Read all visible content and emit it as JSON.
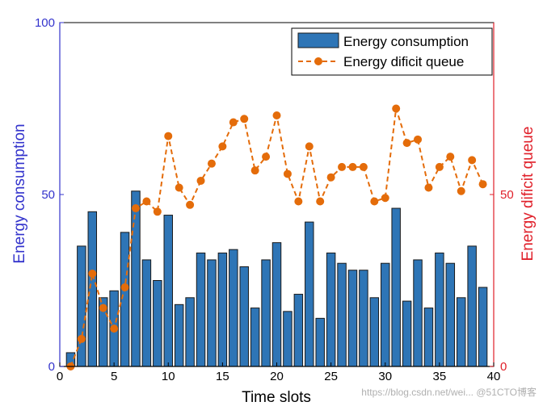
{
  "colors": {
    "bar": "#2e75b6",
    "bar_edge": "#1a1a1a",
    "line": "#e46c0a",
    "left_axis": "#3333cc",
    "right_axis": "#e0202a",
    "x_axis": "#000000"
  },
  "chart_data": {
    "type": "bar",
    "xlabel": "Time slots",
    "ylabel_left": "Energy consumption",
    "ylabel_right": "Energy dificit queue",
    "xlim": [
      0,
      40
    ],
    "ylim_left": [
      0,
      100
    ],
    "ylim_right": [
      0,
      100
    ],
    "x_ticks": [
      0,
      5,
      10,
      15,
      20,
      25,
      30,
      35,
      40
    ],
    "y_left_ticks": [
      0,
      50,
      100
    ],
    "y_right_ticks": [
      0,
      50
    ],
    "legend_position": "top-right",
    "grid": false,
    "x": [
      1,
      2,
      3,
      4,
      5,
      6,
      7,
      8,
      9,
      10,
      11,
      12,
      13,
      14,
      15,
      16,
      17,
      18,
      19,
      20,
      21,
      22,
      23,
      24,
      25,
      26,
      27,
      28,
      29,
      30,
      31,
      32,
      33,
      34,
      35,
      36,
      37,
      38,
      39,
      40
    ],
    "series": [
      {
        "name": "Energy consumption",
        "type": "bar",
        "axis": "left",
        "values": [
          4,
          35,
          45,
          20,
          22,
          39,
          51,
          31,
          25,
          44,
          18,
          20,
          33,
          31,
          33,
          34,
          29,
          17,
          31,
          36,
          16,
          21,
          42,
          14,
          33,
          30,
          28,
          28,
          20,
          30,
          46,
          19,
          31,
          17,
          33,
          30,
          20,
          35,
          23,
          0
        ]
      },
      {
        "name": "Energy dificit queue",
        "type": "line",
        "axis": "right",
        "values": [
          0,
          8,
          27,
          17,
          11,
          23,
          46,
          48,
          45,
          67,
          52,
          47,
          54,
          59,
          64,
          71,
          72,
          57,
          61,
          73,
          56,
          48,
          64,
          48,
          55,
          58,
          58,
          58,
          48,
          49,
          75,
          65,
          66,
          52,
          58,
          61,
          51,
          60,
          53,
          null
        ]
      }
    ]
  },
  "watermark": "https://blog.csdn.net/wei... @51CTO博客"
}
